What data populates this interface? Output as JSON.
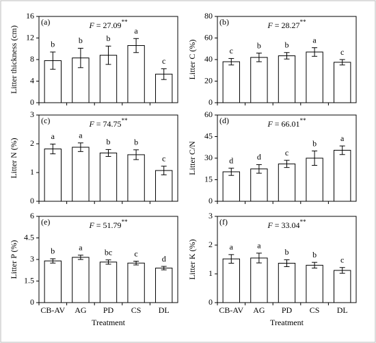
{
  "chart_data": [
    {
      "type": "bar",
      "panel_label": "(a)",
      "ylabel": "Litter thickness (cm)",
      "stat": {
        "symbol": "F",
        "value": " = 27.09",
        "significance": "**"
      },
      "categories": [
        null,
        null,
        null,
        null,
        null
      ],
      "values": [
        7.8,
        8.3,
        8.8,
        10.6,
        5.3
      ],
      "errors": [
        1.6,
        1.8,
        1.7,
        1.3,
        1.0
      ],
      "letters": [
        "b",
        "b",
        "b",
        "a",
        "c"
      ],
      "color": "#ffffff",
      "ylim": [
        0,
        16
      ],
      "yticks": [
        0,
        4,
        8,
        12,
        16
      ]
    },
    {
      "type": "bar",
      "panel_label": "(b)",
      "ylabel": "Litter C (%)",
      "stat": {
        "symbol": "F",
        "value": " = 28.27",
        "significance": "**"
      },
      "categories": [
        null,
        null,
        null,
        null,
        null
      ],
      "values": [
        38,
        42,
        43.5,
        47,
        37.5
      ],
      "errors": [
        3,
        4,
        3,
        4,
        2.5
      ],
      "letters": [
        "c",
        "b",
        "b",
        "a",
        "c"
      ],
      "color": "#ffffff",
      "ylim": [
        0,
        80
      ],
      "yticks": [
        0,
        20,
        40,
        60,
        80
      ]
    },
    {
      "type": "bar",
      "panel_label": "(c)",
      "ylabel": "Litter N (%)",
      "stat": {
        "symbol": "F",
        "value": " = 74.75",
        "significance": "**"
      },
      "categories": [
        null,
        null,
        null,
        null,
        null
      ],
      "values": [
        1.82,
        1.88,
        1.68,
        1.62,
        1.07
      ],
      "errors": [
        0.17,
        0.15,
        0.12,
        0.17,
        0.15
      ],
      "letters": [
        "a",
        "a",
        "b",
        "b",
        "c"
      ],
      "color": "#ffffff",
      "ylim": [
        0,
        3
      ],
      "yticks": [
        0,
        1,
        2,
        3
      ]
    },
    {
      "type": "bar",
      "panel_label": "(d)",
      "ylabel": "Litter C/N",
      "stat": {
        "symbol": "F",
        "value": " = 66.01",
        "significance": "**"
      },
      "categories": [
        null,
        null,
        null,
        null,
        null
      ],
      "values": [
        20.5,
        22.5,
        26,
        30,
        35.5
      ],
      "errors": [
        2.5,
        3,
        2.5,
        5,
        3
      ],
      "letters": [
        "d",
        "d",
        "c",
        "b",
        "a"
      ],
      "color": "#ffffff",
      "ylim": [
        0,
        60
      ],
      "yticks": [
        0,
        15,
        30,
        45,
        60
      ]
    },
    {
      "type": "bar",
      "panel_label": "(e)",
      "ylabel": "Litter P (%)",
      "xlabel": "Treatment",
      "stat": {
        "symbol": "F",
        "value": " = 51.79",
        "significance": "**"
      },
      "categories": [
        "CB-AV",
        "AG",
        "PD",
        "CS",
        "DL"
      ],
      "values": [
        2.9,
        3.15,
        2.82,
        2.75,
        2.4
      ],
      "errors": [
        0.15,
        0.15,
        0.15,
        0.13,
        0.12
      ],
      "letters": [
        "b",
        "a",
        "bc",
        "c",
        "d"
      ],
      "color": "#ffffff",
      "ylim": [
        0,
        6
      ],
      "yticks": [
        0,
        1.5,
        3,
        4.5,
        6
      ]
    },
    {
      "type": "bar",
      "panel_label": "(f)",
      "ylabel": "Litter K (%)",
      "xlabel": "Treatment",
      "stat": {
        "symbol": "F",
        "value": " = 33.04",
        "significance": "**"
      },
      "categories": [
        "CB-AV",
        "AG",
        "PD",
        "CS",
        "DL"
      ],
      "values": [
        1.52,
        1.55,
        1.37,
        1.3,
        1.12
      ],
      "errors": [
        0.15,
        0.17,
        0.12,
        0.1,
        0.1
      ],
      "letters": [
        "a",
        "a",
        "b",
        "b",
        "c"
      ],
      "color": "#ffffff",
      "ylim": [
        0,
        3
      ],
      "yticks": [
        0,
        1,
        2,
        3
      ]
    }
  ]
}
